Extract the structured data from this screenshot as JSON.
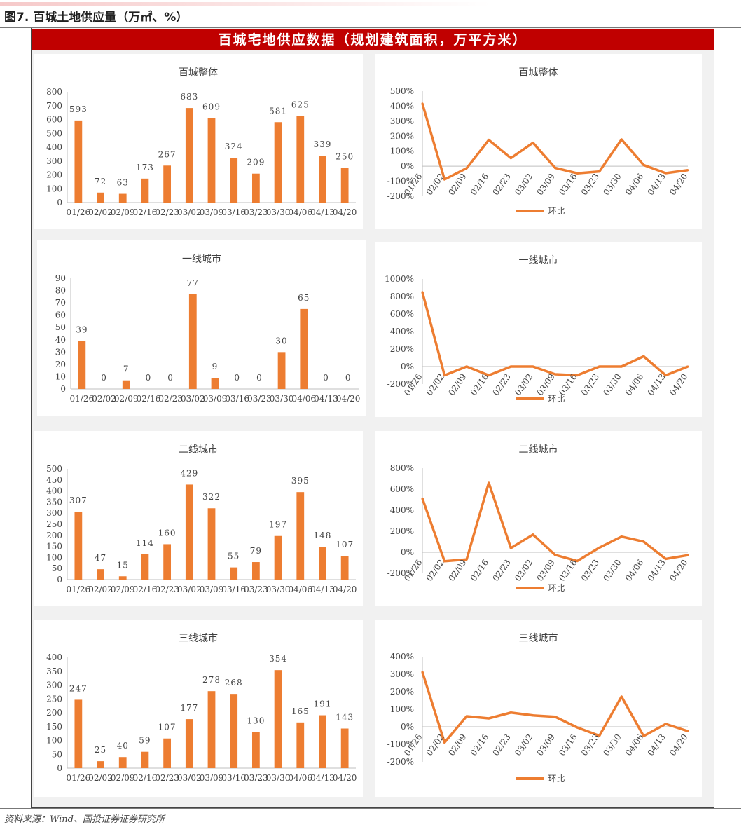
{
  "figure_title": "图7. 百城土地供应量（万㎡、%）",
  "banner": "百城宅地供应数据（规划建筑面积，万平方米）",
  "source": "资料来源：Wind、国投证券证券研究所",
  "colors": {
    "bar": "#ed7d31",
    "line": "#ed7d31",
    "banner": "#c00000",
    "axis": "#bfbfbf"
  },
  "chart_data": [
    {
      "type": "bar",
      "title": "百城整体",
      "categories": [
        "01/26",
        "02/02",
        "02/09",
        "02/16",
        "02/23",
        "03/02",
        "03/09",
        "03/16",
        "03/23",
        "03/30",
        "04/06",
        "04/13",
        "04/20"
      ],
      "values": [
        593,
        72,
        63,
        173,
        267,
        683,
        609,
        324,
        209,
        581,
        625,
        339,
        250
      ],
      "ylim": [
        0,
        800
      ],
      "yticks": [
        0,
        100,
        200,
        300,
        400,
        500,
        600,
        700,
        800
      ]
    },
    {
      "type": "line",
      "title": "百城整体",
      "categories": [
        "01/26",
        "02/02",
        "02/09",
        "02/16",
        "02/23",
        "03/02",
        "03/09",
        "03/16",
        "03/23",
        "03/30",
        "04/06",
        "04/13",
        "04/20"
      ],
      "series": [
        {
          "name": "环比",
          "values": [
            417,
            -88,
            -13,
            175,
            54,
            156,
            -11,
            -47,
            -35,
            178,
            8,
            -46,
            -26
          ]
        }
      ],
      "ylim": [
        -200,
        500
      ],
      "yticks": [
        -200,
        -100,
        0,
        100,
        200,
        300,
        400,
        500
      ],
      "ytick_labels": [
        "-200%",
        "-100%",
        "0%",
        "100%",
        "200%",
        "300%",
        "400%",
        "500%"
      ],
      "legend_position": "bottom"
    },
    {
      "type": "bar",
      "title": "一线城市",
      "categories": [
        "01/26",
        "02/02",
        "02/09",
        "02/16",
        "02/23",
        "03/02",
        "03/09",
        "03/16",
        "03/23",
        "03/30",
        "04/06",
        "04/13",
        "04/20"
      ],
      "values": [
        39,
        0,
        7,
        0,
        0,
        77,
        9,
        0,
        0,
        30,
        65,
        0,
        0
      ],
      "ylim": [
        0,
        90
      ],
      "yticks": [
        0,
        10,
        20,
        30,
        40,
        50,
        60,
        70,
        80,
        90
      ]
    },
    {
      "type": "line",
      "title": "一线城市",
      "categories": [
        "01/26",
        "02/02",
        "02/09",
        "02/16",
        "02/23",
        "03/02",
        "03/09",
        "03/16",
        "03/23",
        "03/30",
        "04/06",
        "04/13",
        "04/20"
      ],
      "series": [
        {
          "name": "环比",
          "values": [
            850,
            -100,
            0,
            -100,
            0,
            0,
            -88,
            -100,
            0,
            0,
            117,
            -100,
            0
          ]
        }
      ],
      "ylim": [
        -200,
        1000
      ],
      "yticks": [
        -200,
        0,
        200,
        400,
        600,
        800,
        1000
      ],
      "ytick_labels": [
        "-200%",
        "0%",
        "200%",
        "400%",
        "600%",
        "800%",
        "1000%"
      ],
      "legend_position": "bottom"
    },
    {
      "type": "bar",
      "title": "二线城市",
      "categories": [
        "01/26",
        "02/02",
        "02/09",
        "02/16",
        "02/23",
        "03/02",
        "03/09",
        "03/16",
        "03/23",
        "03/30",
        "04/06",
        "04/13",
        "04/20"
      ],
      "values": [
        307,
        47,
        15,
        114,
        160,
        429,
        322,
        55,
        79,
        197,
        395,
        148,
        107
      ],
      "ylim": [
        0,
        500
      ],
      "yticks": [
        0,
        50,
        100,
        150,
        200,
        250,
        300,
        350,
        400,
        450,
        500
      ]
    },
    {
      "type": "line",
      "title": "二线城市",
      "categories": [
        "01/26",
        "02/02",
        "02/09",
        "02/16",
        "02/23",
        "03/02",
        "03/09",
        "03/16",
        "03/23",
        "03/30",
        "04/06",
        "04/13",
        "04/20"
      ],
      "series": [
        {
          "name": "环比",
          "values": [
            512,
            -85,
            -68,
            660,
            40,
            168,
            -25,
            -83,
            44,
            149,
            101,
            -63,
            -28
          ]
        }
      ],
      "ylim": [
        -200,
        800
      ],
      "yticks": [
        -200,
        0,
        200,
        400,
        600,
        800
      ],
      "ytick_labels": [
        "-200%",
        "0%",
        "200%",
        "400%",
        "600%",
        "800%"
      ],
      "legend_position": "bottom"
    },
    {
      "type": "bar",
      "title": "三线城市",
      "categories": [
        "01/26",
        "02/02",
        "02/09",
        "02/16",
        "02/23",
        "03/02",
        "03/09",
        "03/16",
        "03/23",
        "03/30",
        "04/06",
        "04/13",
        "04/20"
      ],
      "values": [
        247,
        25,
        40,
        59,
        107,
        177,
        278,
        268,
        130,
        354,
        165,
        191,
        143
      ],
      "ylim": [
        0,
        400
      ],
      "yticks": [
        0,
        50,
        100,
        150,
        200,
        250,
        300,
        350,
        400
      ]
    },
    {
      "type": "line",
      "title": "三线城市",
      "categories": [
        "01/26",
        "02/02",
        "02/09",
        "02/16",
        "02/23",
        "03/02",
        "03/09",
        "03/16",
        "03/23",
        "03/30",
        "04/06",
        "04/13",
        "04/20"
      ],
      "series": [
        {
          "name": "环比",
          "values": [
            313,
            -90,
            60,
            48,
            81,
            65,
            57,
            -4,
            -51,
            172,
            -53,
            16,
            -25
          ]
        }
      ],
      "ylim": [
        -200,
        400
      ],
      "yticks": [
        -200,
        -100,
        0,
        100,
        200,
        300,
        400
      ],
      "ytick_labels": [
        "-200%",
        "-100%",
        "0%",
        "100%",
        "200%",
        "300%",
        "400%"
      ],
      "legend_position": "bottom"
    }
  ]
}
